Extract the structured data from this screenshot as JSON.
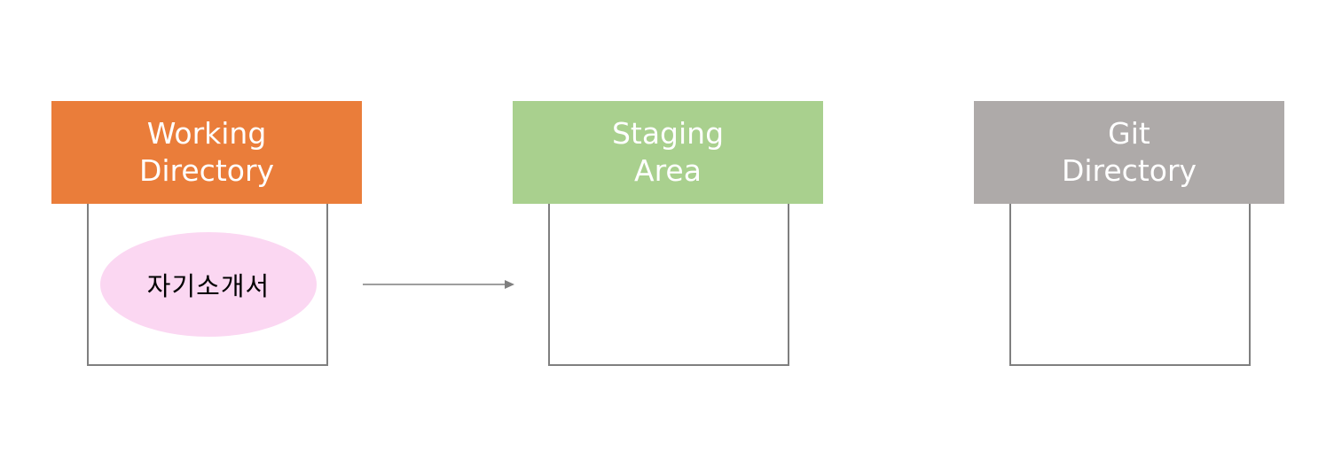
{
  "stages": [
    {
      "id": "working",
      "title_line1": "Working",
      "title_line2": "Directory",
      "color": "#ea7d3a"
    },
    {
      "id": "staging",
      "title_line1": "Staging",
      "title_line2": "Area",
      "color": "#a9d08e"
    },
    {
      "id": "git",
      "title_line1": "Git",
      "title_line2": "Directory",
      "color": "#aeaaa9"
    }
  ],
  "file": {
    "label": "자기소개서",
    "color": "#fbd7f2"
  },
  "arrow": {
    "from": "working",
    "to": "staging",
    "color": "#7f7f7f"
  }
}
